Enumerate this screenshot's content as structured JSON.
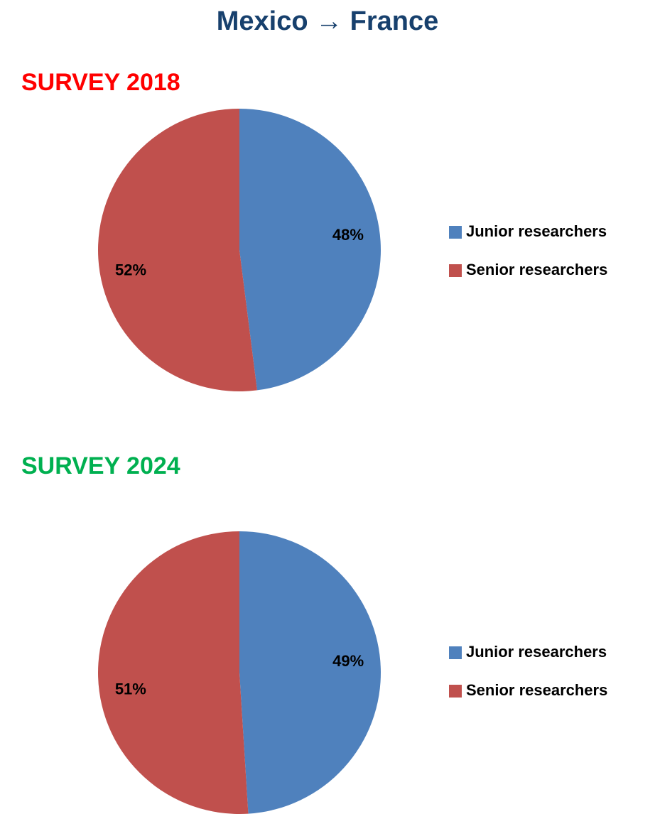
{
  "title": "Mexico → France",
  "chart_data": [
    {
      "type": "pie",
      "title": "SURVEY 2018",
      "title_color": "#ff0000",
      "categories": [
        "Junior researchers",
        "Senior researchers"
      ],
      "values": [
        48,
        52
      ],
      "value_labels": [
        "48%",
        "52%"
      ],
      "colors": [
        "#4f81bd",
        "#c0504d"
      ],
      "legend": "right"
    },
    {
      "type": "pie",
      "title": "SURVEY 2024",
      "title_color": "#00b050",
      "categories": [
        "Junior researchers",
        "Senior researchers"
      ],
      "values": [
        49,
        51
      ],
      "value_labels": [
        "49%",
        "51%"
      ],
      "colors": [
        "#4f81bd",
        "#c0504d"
      ],
      "legend": "right"
    }
  ]
}
